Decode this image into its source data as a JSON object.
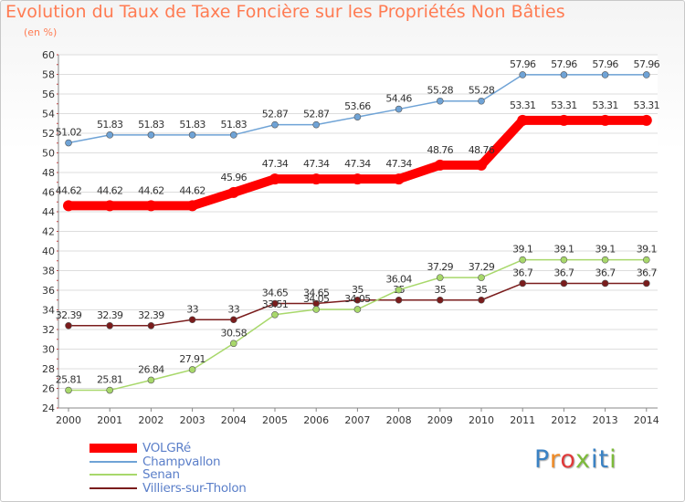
{
  "page": {
    "title": "Evolution du Taux de Taxe Foncière sur les Propriétés Non Bâties",
    "unit": "(en %)",
    "logo": "Proxiti"
  },
  "colors": {
    "title": "#ff7b52",
    "axis_text": "#333333",
    "grid": "#dddddd",
    "logo_letters": [
      "#3a82c4",
      "#f08a24",
      "#e03a3a",
      "#7dbb3a",
      "#3a82c4",
      "#3a82c4",
      "#7dbb3a"
    ]
  },
  "chart_data": {
    "type": "line",
    "title": "Evolution du Taux de Taxe Foncière sur les Propriétés Non Bâties",
    "ylabel": "(en %)",
    "xlabel": "",
    "x": [
      "2000",
      "2001",
      "2002",
      "2003",
      "2004",
      "2005",
      "2006",
      "2007",
      "2008",
      "2009",
      "2010",
      "2011",
      "2012",
      "2013",
      "2014"
    ],
    "ylim": [
      24,
      60
    ],
    "yticks": [
      24,
      26,
      28,
      30,
      32,
      34,
      36,
      38,
      40,
      42,
      44,
      46,
      48,
      50,
      52,
      54,
      56,
      58,
      60
    ],
    "grid": "horizontal",
    "legend_position": "bottom-left",
    "series": [
      {
        "name": "Champvallon",
        "color": "#6fa3d6",
        "values": [
          51.02,
          51.83,
          51.83,
          51.83,
          51.83,
          52.87,
          52.87,
          53.66,
          54.46,
          55.28,
          55.28,
          57.96,
          57.96,
          57.96,
          57.96
        ],
        "labels": [
          "51.02",
          "51.83",
          "51.83",
          "51.83",
          "51.83",
          "52.87",
          "52.87",
          "53.66",
          "54.46",
          "55.28",
          "55.28",
          "57.96",
          "57.96",
          "57.96",
          "57.96"
        ]
      },
      {
        "name": "VOLGRé",
        "color": "#ff0000",
        "values": [
          44.62,
          44.62,
          44.62,
          44.62,
          45.96,
          47.34,
          47.34,
          47.34,
          47.34,
          48.76,
          48.76,
          53.31,
          53.31,
          53.31,
          53.31
        ],
        "labels": [
          "44.62",
          "44.62",
          "44.62",
          "44.62",
          "45.96",
          "47.34",
          "47.34",
          "47.34",
          "47.34",
          "48.76",
          "48.76",
          "53.31",
          "53.31",
          "53.31",
          "53.31"
        ]
      },
      {
        "name": "Villiers-sur-Tholon",
        "color": "#7a1c1c",
        "values": [
          32.39,
          32.39,
          32.39,
          33,
          33,
          34.65,
          34.65,
          35,
          35,
          35,
          35,
          36.7,
          36.7,
          36.7,
          36.7
        ],
        "labels": [
          "32.39",
          "32.39",
          "32.39",
          "33",
          "33",
          "34.65",
          "34.65",
          "35",
          "35",
          "35",
          "35",
          "36.7",
          "36.7",
          "36.7",
          "36.7"
        ]
      },
      {
        "name": "Senan",
        "color": "#a8d86b",
        "values": [
          25.81,
          25.81,
          26.84,
          27.91,
          30.58,
          33.51,
          34.05,
          34.05,
          36.04,
          37.29,
          37.29,
          39.1,
          39.1,
          39.1,
          39.1
        ],
        "labels": [
          "25.81",
          "25.81",
          "26.84",
          "27.91",
          "30.58",
          "33.51",
          "34.05",
          "34.05",
          "36.04",
          "37.29",
          "37.29",
          "39.1",
          "39.1",
          "39.1",
          "39.1"
        ]
      }
    ],
    "legend": [
      "VOLGRé",
      "Champvallon",
      "Senan",
      "Villiers-sur-Tholon"
    ]
  }
}
